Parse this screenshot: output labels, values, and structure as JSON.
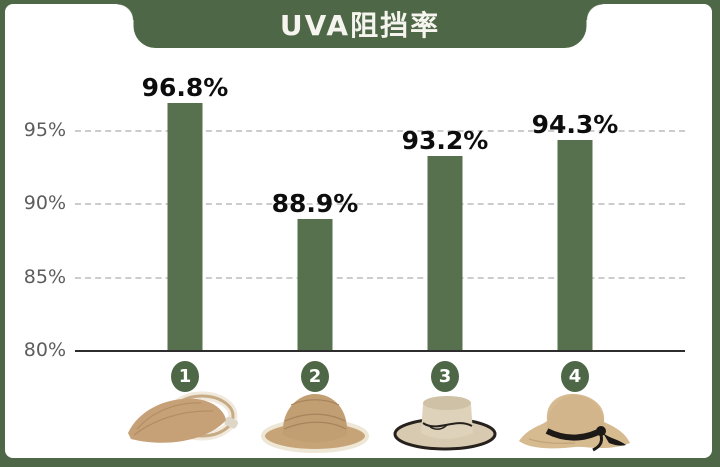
{
  "header": {
    "title": "UVA阻挡率"
  },
  "colors": {
    "page_background": "#4e6847",
    "card_background": "#ffffff",
    "banner_green": "#4e6847",
    "bar_green": "#57704e",
    "badge_green": "#4e6847",
    "gridline_gray": "#cccccc",
    "axis_black": "#2d2d2d",
    "tick_text": "#5d5d5d",
    "value_text": "#0d0d0d",
    "straw_tan": "#c9a87f"
  },
  "chart_data": {
    "type": "bar",
    "title": "UVA阻挡率",
    "categories": [
      "1",
      "2",
      "3",
      "4"
    ],
    "values": [
      96.8,
      88.9,
      93.2,
      94.3
    ],
    "xlabel": "",
    "ylabel": "",
    "ylim": [
      80,
      98
    ],
    "grid": "horizontal dashed at 85/90/95, solid baseline at 80",
    "legend": "none",
    "yticks": [
      {
        "value": 95,
        "label": "95%"
      },
      {
        "value": 90,
        "label": "90%"
      },
      {
        "value": 85,
        "label": "85%"
      },
      {
        "value": 80,
        "label": "80%"
      }
    ],
    "bars": [
      {
        "index": "1",
        "value": 96.8,
        "label": "96.8%",
        "image": "straw-sun-visor-with-white-band"
      },
      {
        "index": "2",
        "value": 88.9,
        "label": "88.9%",
        "image": "straw-bucket-hat-with-white-trim"
      },
      {
        "index": "3",
        "value": 93.2,
        "label": "93.2%",
        "image": "flat-top-straw-hat-with-black-trim"
      },
      {
        "index": "4",
        "value": 94.3,
        "label": "94.3%",
        "image": "wide-brim-straw-hat-with-black-ribbon-bow"
      }
    ]
  }
}
